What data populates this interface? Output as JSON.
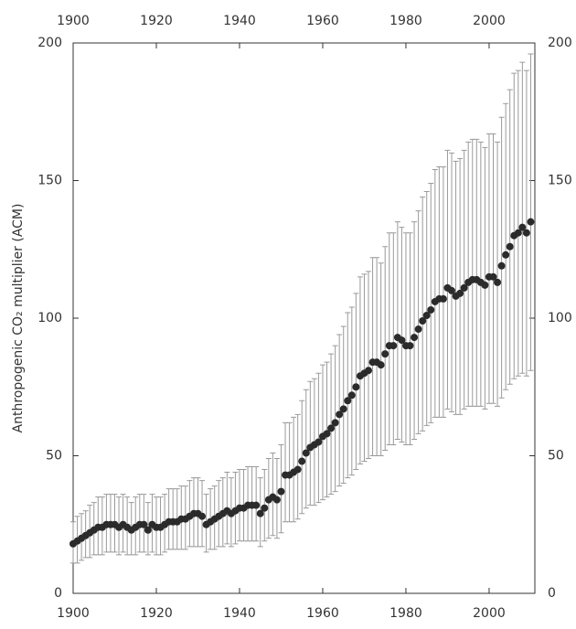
{
  "chart_data": {
    "type": "scatter",
    "ylabel": "Anthropogenic CO₂ multiplier (ACM)",
    "x": [
      1900,
      1901,
      1902,
      1903,
      1904,
      1905,
      1906,
      1907,
      1908,
      1909,
      1910,
      1911,
      1912,
      1913,
      1914,
      1915,
      1916,
      1917,
      1918,
      1919,
      1920,
      1921,
      1922,
      1923,
      1924,
      1925,
      1926,
      1927,
      1928,
      1929,
      1930,
      1931,
      1932,
      1933,
      1934,
      1935,
      1936,
      1937,
      1938,
      1939,
      1940,
      1941,
      1942,
      1943,
      1944,
      1945,
      1946,
      1947,
      1948,
      1949,
      1950,
      1951,
      1952,
      1953,
      1954,
      1955,
      1956,
      1957,
      1958,
      1959,
      1960,
      1961,
      1962,
      1963,
      1964,
      1965,
      1966,
      1967,
      1968,
      1969,
      1970,
      1971,
      1972,
      1973,
      1974,
      1975,
      1976,
      1977,
      1978,
      1979,
      1980,
      1981,
      1982,
      1983,
      1984,
      1985,
      1986,
      1987,
      1988,
      1989,
      1990,
      1991,
      1992,
      1993,
      1994,
      1995,
      1996,
      1997,
      1998,
      1999,
      2000,
      2001,
      2002,
      2003,
      2004,
      2005,
      2006,
      2007,
      2008,
      2009,
      2010
    ],
    "series": [
      {
        "color": "#2b2b2b",
        "error_color": "#9a9a9a",
        "values": [
          18,
          19,
          20,
          21,
          22,
          23,
          24,
          24,
          25,
          25,
          25,
          24,
          25,
          24,
          23,
          24,
          25,
          25,
          23,
          25,
          24,
          24,
          25,
          26,
          26,
          26,
          27,
          27,
          28,
          29,
          29,
          28,
          25,
          26,
          27,
          28,
          29,
          30,
          29,
          30,
          31,
          31,
          32,
          32,
          32,
          29,
          31,
          34,
          35,
          34,
          37,
          43,
          43,
          44,
          45,
          48,
          51,
          53,
          54,
          55,
          57,
          58,
          60,
          62,
          65,
          67,
          70,
          72,
          75,
          79,
          80,
          81,
          84,
          84,
          83,
          87,
          90,
          90,
          93,
          92,
          90,
          90,
          93,
          96,
          99,
          101,
          103,
          106,
          107,
          107,
          111,
          110,
          108,
          109,
          111,
          113,
          114,
          114,
          113,
          112,
          115,
          115,
          113,
          119,
          123,
          126,
          130,
          131,
          133,
          131,
          135
        ],
        "upper": [
          26,
          28,
          29,
          30,
          32,
          33,
          35,
          35,
          36,
          36,
          36,
          35,
          36,
          35,
          33,
          35,
          36,
          36,
          33,
          36,
          35,
          35,
          36,
          38,
          38,
          38,
          39,
          39,
          41,
          42,
          42,
          41,
          36,
          38,
          39,
          41,
          42,
          44,
          42,
          44,
          45,
          45,
          46,
          46,
          46,
          42,
          45,
          49,
          51,
          49,
          54,
          62,
          62,
          64,
          65,
          70,
          74,
          77,
          78,
          80,
          83,
          84,
          87,
          90,
          94,
          97,
          102,
          104,
          109,
          115,
          116,
          117,
          122,
          122,
          120,
          126,
          131,
          131,
          135,
          133,
          131,
          131,
          135,
          139,
          144,
          146,
          149,
          154,
          155,
          155,
          161,
          160,
          157,
          158,
          161,
          164,
          165,
          165,
          164,
          162,
          167,
          167,
          164,
          173,
          178,
          183,
          189,
          190,
          193,
          190,
          196
        ],
        "lower": [
          11,
          11,
          12,
          13,
          13,
          14,
          14,
          14,
          15,
          15,
          15,
          14,
          15,
          14,
          14,
          14,
          15,
          15,
          14,
          15,
          14,
          14,
          15,
          16,
          16,
          16,
          16,
          16,
          17,
          17,
          17,
          17,
          15,
          16,
          16,
          17,
          17,
          18,
          17,
          18,
          19,
          19,
          19,
          19,
          19,
          17,
          19,
          20,
          21,
          20,
          22,
          26,
          26,
          26,
          27,
          29,
          31,
          32,
          32,
          33,
          34,
          35,
          36,
          37,
          39,
          40,
          42,
          43,
          45,
          47,
          48,
          49,
          50,
          50,
          50,
          52,
          54,
          54,
          56,
          55,
          54,
          54,
          56,
          58,
          59,
          61,
          62,
          64,
          64,
          64,
          67,
          66,
          65,
          65,
          67,
          68,
          68,
          68,
          68,
          67,
          69,
          69,
          68,
          71,
          74,
          76,
          78,
          79,
          80,
          79,
          81
        ]
      }
    ],
    "xlim": [
      1900,
      2011
    ],
    "xticks": [
      1900,
      1920,
      1940,
      1960,
      1980,
      2000
    ],
    "ylim": [
      0,
      200
    ],
    "yticks": [
      0,
      50,
      100,
      150,
      200
    ],
    "y2lim": [
      0,
      200
    ],
    "y2ticks": [
      0,
      50,
      100,
      150,
      200
    ]
  }
}
